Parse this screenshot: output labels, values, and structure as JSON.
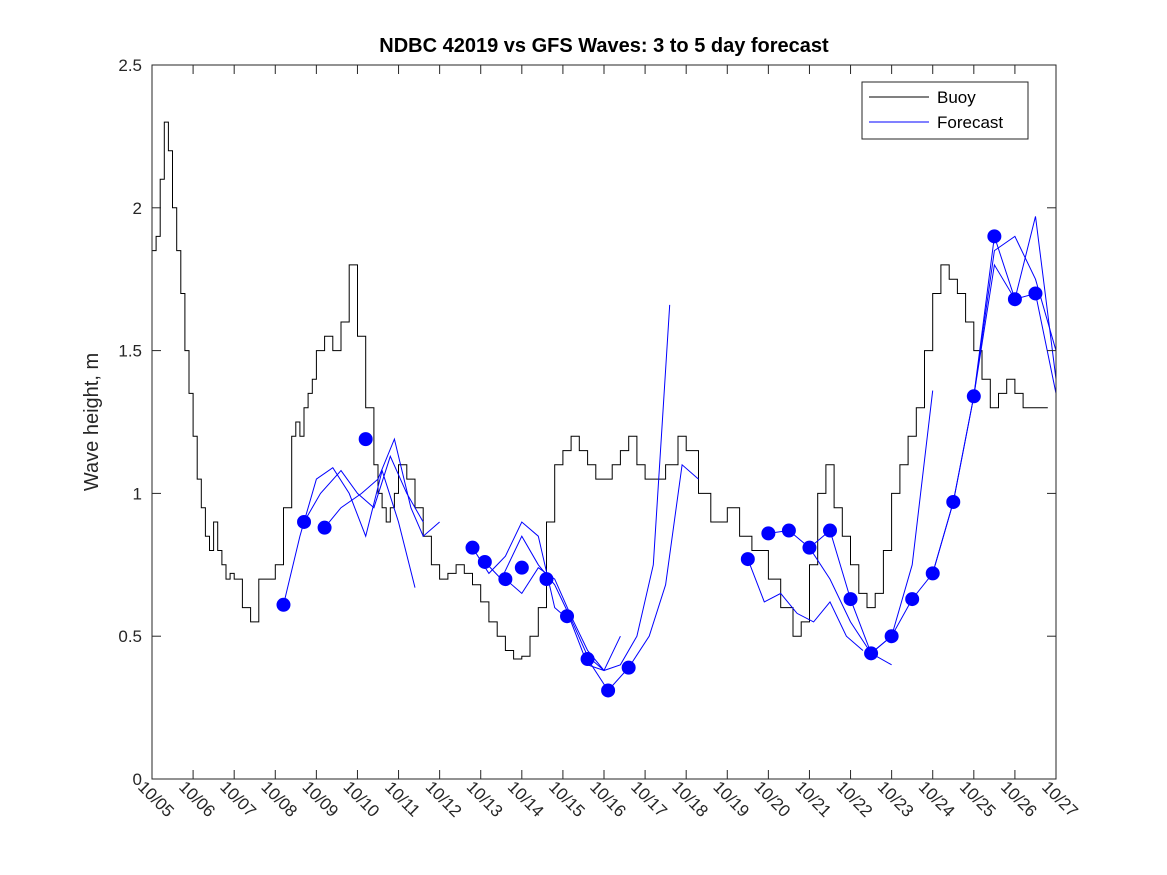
{
  "chart_data": {
    "type": "line",
    "title": "NDBC 42019 vs GFS Waves: 3 to 5 day forecast",
    "xlabel": "",
    "ylabel": "Wave height, m",
    "xlim": [
      0,
      22
    ],
    "ylim": [
      0,
      2.5
    ],
    "x_tick_labels": [
      "10/05",
      "10/06",
      "10/07",
      "10/08",
      "10/09",
      "10/10",
      "10/11",
      "10/12",
      "10/13",
      "10/14",
      "10/15",
      "10/16",
      "10/17",
      "10/18",
      "10/19",
      "10/20",
      "10/21",
      "10/22",
      "10/23",
      "10/24",
      "10/25",
      "10/26",
      "10/27"
    ],
    "y_ticks": [
      0,
      0.5,
      1,
      1.5,
      2,
      2.5
    ],
    "y_tick_labels": [
      "0",
      "0.5",
      "1",
      "1.5",
      "2",
      "2.5"
    ],
    "legend": {
      "location": "top-right",
      "entries": [
        "Buoy",
        "Forecast"
      ]
    },
    "colors": {
      "buoy": "#000000",
      "forecast": "#0000ff",
      "axis": "#262626"
    },
    "series": [
      {
        "name": "Buoy",
        "x": [
          0,
          0.1,
          0.2,
          0.3,
          0.4,
          0.5,
          0.6,
          0.7,
          0.8,
          0.9,
          1.0,
          1.1,
          1.2,
          1.3,
          1.4,
          1.5,
          1.6,
          1.7,
          1.8,
          1.9,
          2.0,
          2.2,
          2.4,
          2.6,
          2.8,
          2.9,
          3.0,
          3.2,
          3.4,
          3.5,
          3.6,
          3.7,
          3.8,
          3.9,
          4.0,
          4.2,
          4.4,
          4.6,
          4.8,
          5.0,
          5.2,
          5.4,
          5.5,
          5.6,
          5.7,
          5.8,
          5.9,
          6.0,
          6.2,
          6.4,
          6.6,
          6.8,
          7.0,
          7.2,
          7.4,
          7.6,
          7.8,
          8.0,
          8.2,
          8.4,
          8.6,
          8.8,
          9.0,
          9.2,
          9.4,
          9.6,
          9.8,
          10.0,
          10.2,
          10.4,
          10.6,
          10.8,
          11.0,
          11.2,
          11.4,
          11.6,
          11.8,
          12.0,
          12.2,
          12.5,
          12.8,
          13.0,
          13.3,
          13.6,
          14.0,
          14.3,
          14.6,
          15.0,
          15.3,
          15.6,
          15.8,
          16.0,
          16.2,
          16.4,
          16.6,
          16.8,
          17.0,
          17.2,
          17.4,
          17.6,
          17.8,
          18.0,
          18.2,
          18.4,
          18.6,
          18.8,
          19.0,
          19.2,
          19.4,
          19.6,
          19.8,
          20.0,
          20.2,
          20.4,
          20.6,
          20.8,
          21.0,
          21.2,
          21.4,
          21.6,
          21.7,
          21.8
        ],
        "values": [
          1.85,
          1.9,
          2.1,
          2.3,
          2.2,
          2.0,
          1.85,
          1.7,
          1.5,
          1.35,
          1.2,
          1.05,
          0.95,
          0.85,
          0.8,
          0.9,
          0.8,
          0.75,
          0.7,
          0.72,
          0.7,
          0.6,
          0.55,
          0.7,
          0.7,
          0.7,
          0.75,
          0.95,
          1.2,
          1.25,
          1.2,
          1.3,
          1.35,
          1.4,
          1.5,
          1.55,
          1.5,
          1.6,
          1.8,
          1.55,
          1.3,
          1.1,
          1.0,
          0.95,
          0.9,
          0.95,
          1.0,
          1.1,
          1.05,
          0.95,
          0.85,
          0.75,
          0.7,
          0.72,
          0.75,
          0.72,
          0.68,
          0.62,
          0.55,
          0.5,
          0.45,
          0.42,
          0.43,
          0.5,
          0.6,
          0.9,
          1.1,
          1.15,
          1.2,
          1.15,
          1.1,
          1.05,
          1.05,
          1.1,
          1.15,
          1.2,
          1.1,
          1.05,
          1.05,
          1.1,
          1.2,
          1.15,
          1.0,
          0.9,
          0.95,
          0.85,
          0.8,
          0.7,
          0.6,
          0.5,
          0.55,
          0.75,
          1.0,
          1.1,
          0.95,
          0.85,
          0.75,
          0.65,
          0.6,
          0.65,
          0.8,
          1.0,
          1.1,
          1.2,
          1.3,
          1.5,
          1.7,
          1.8,
          1.75,
          1.7,
          1.6,
          1.5,
          1.4,
          1.3,
          1.35,
          1.4,
          1.35,
          1.3,
          1.3,
          1.3,
          1.3,
          1.3
        ]
      },
      {
        "name": "Forecast",
        "x": [
          3.2,
          3.6,
          4.0,
          4.4,
          4.8,
          5.2,
          5.6,
          6.0,
          6.4
        ],
        "values": [
          0.61,
          0.85,
          1.05,
          1.09,
          1.0,
          0.85,
          1.08,
          0.9,
          0.67
        ]
      },
      {
        "name": "Forecast",
        "x": [
          3.7,
          4.1,
          4.6,
          5.0,
          5.4,
          5.8,
          6.2,
          6.6
        ],
        "values": [
          0.9,
          1.0,
          1.08,
          1.0,
          0.95,
          1.13,
          1.0,
          0.9
        ]
      },
      {
        "name": "Forecast",
        "x": [
          4.2,
          4.6,
          5.1,
          5.5,
          5.9,
          6.3,
          6.6,
          7.0
        ],
        "values": [
          0.88,
          0.95,
          1.0,
          1.05,
          1.19,
          0.95,
          0.85,
          0.9
        ]
      },
      {
        "name": "Forecast",
        "x": [
          7.8,
          8.2,
          8.6,
          9.0,
          9.4,
          9.8,
          10.2,
          10.6,
          11.0
        ],
        "values": [
          0.81,
          0.72,
          0.78,
          0.9,
          0.85,
          0.6,
          0.55,
          0.4,
          0.38
        ]
      },
      {
        "name": "Forecast",
        "x": [
          8.1,
          8.5,
          9.0,
          9.4,
          9.8,
          10.2,
          10.6,
          11.0,
          11.4
        ],
        "values": [
          0.76,
          0.7,
          0.85,
          0.75,
          0.68,
          0.56,
          0.43,
          0.38,
          0.5
        ]
      },
      {
        "name": "Forecast",
        "x": [
          8.6,
          9.0,
          9.4,
          9.8,
          10.2,
          10.6,
          11.0,
          11.4,
          11.8,
          12.2,
          12.6
        ],
        "values": [
          0.7,
          0.65,
          0.74,
          0.7,
          0.57,
          0.45,
          0.38,
          0.4,
          0.5,
          0.75,
          1.66
        ]
      },
      {
        "name": "Forecast",
        "x": [
          10.6,
          11.1,
          11.6,
          12.1,
          12.5,
          12.9,
          13.3
        ],
        "values": [
          0.42,
          0.31,
          0.39,
          0.5,
          0.68,
          1.1,
          1.05
        ]
      },
      {
        "name": "Forecast",
        "x": [
          14.5,
          14.9,
          15.3,
          15.7,
          16.1,
          16.5,
          16.9,
          17.3
        ],
        "values": [
          0.77,
          0.62,
          0.65,
          0.58,
          0.55,
          0.62,
          0.5,
          0.45
        ]
      },
      {
        "name": "Forecast",
        "x": [
          15.0,
          15.5,
          16.0,
          16.5,
          17.0,
          17.5,
          18.0
        ],
        "values": [
          0.86,
          0.87,
          0.81,
          0.7,
          0.55,
          0.44,
          0.4
        ]
      },
      {
        "name": "Forecast",
        "x": [
          16.0,
          16.5,
          17.0,
          17.5,
          18.0,
          18.5,
          19.0
        ],
        "values": [
          0.81,
          0.87,
          0.63,
          0.44,
          0.5,
          0.75,
          1.36
        ]
      },
      {
        "name": "Forecast",
        "x": [
          17.5,
          18.0,
          18.5,
          19.0,
          19.5,
          20.0,
          20.5,
          21.0,
          21.5,
          22.0
        ],
        "values": [
          0.44,
          0.5,
          0.63,
          0.72,
          0.97,
          1.34,
          1.85,
          1.9,
          1.75,
          1.5
        ]
      },
      {
        "name": "Forecast",
        "x": [
          19.0,
          19.5,
          20.0,
          20.5,
          21.0,
          21.5,
          22.0
        ],
        "values": [
          0.72,
          0.97,
          1.34,
          1.8,
          1.68,
          1.7,
          1.35
        ]
      },
      {
        "name": "Forecast",
        "x": [
          20.0,
          20.5,
          21.0,
          21.5,
          22.0
        ],
        "values": [
          1.34,
          1.9,
          1.68,
          1.97,
          1.4
        ]
      }
    ],
    "markers": {
      "name": "Forecast",
      "x": [
        3.2,
        3.7,
        4.2,
        5.2,
        7.8,
        8.1,
        8.6,
        9.0,
        9.6,
        10.1,
        10.6,
        11.1,
        11.6,
        14.5,
        15.0,
        15.5,
        16.0,
        16.5,
        17.0,
        17.5,
        18.0,
        18.5,
        19.0,
        19.5,
        20.0,
        20.5,
        21.0,
        21.5
      ],
      "values": [
        0.61,
        0.9,
        0.88,
        1.19,
        0.81,
        0.76,
        0.7,
        0.74,
        0.7,
        0.57,
        0.42,
        0.31,
        0.39,
        0.77,
        0.86,
        0.87,
        0.81,
        0.87,
        0.63,
        0.44,
        0.5,
        0.63,
        0.72,
        0.97,
        1.34,
        1.9,
        1.68,
        1.7
      ]
    }
  }
}
